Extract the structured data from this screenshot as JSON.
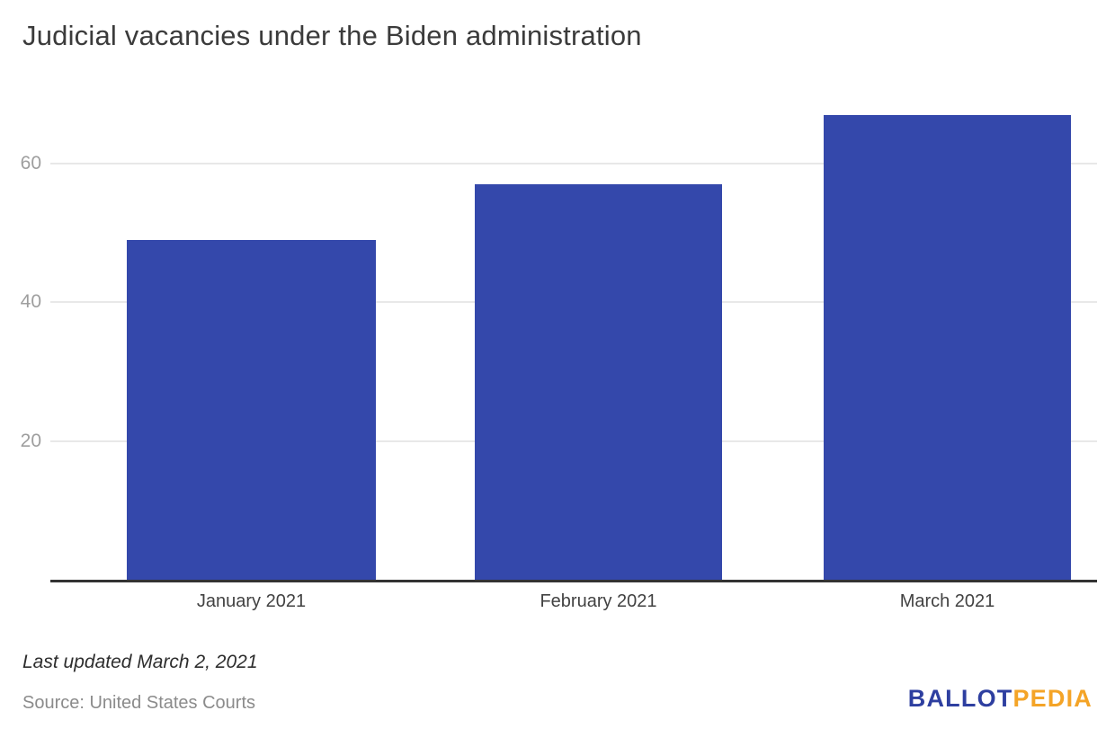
{
  "title": {
    "text": "Judicial vacancies under the Biden administration",
    "color": "#3b3b3b"
  },
  "chart_data": {
    "type": "bar",
    "title": "Judicial vacancies under the Biden administration",
    "categories": [
      "January 2021",
      "February 2021",
      "March 2021"
    ],
    "values": [
      49,
      57,
      67
    ],
    "xlabel": "",
    "ylabel": "",
    "ylim": [
      0,
      71
    ],
    "yticks": [
      20,
      40,
      60
    ],
    "grid": true,
    "legend": "none",
    "bar_color": "#3448ab",
    "gridline_color": "#e8e8e8",
    "axis_line_color": "#333333",
    "ytick_color": "#9e9e9e",
    "xtick_color": "#424242"
  },
  "footer": {
    "updated": "Last updated March 2, 2021",
    "source": "Source: United States Courts",
    "logo": {
      "part1": "BALLOT",
      "part2": "PEDIA",
      "color1": "#2e3fa0",
      "color2": "#f4a427"
    }
  }
}
